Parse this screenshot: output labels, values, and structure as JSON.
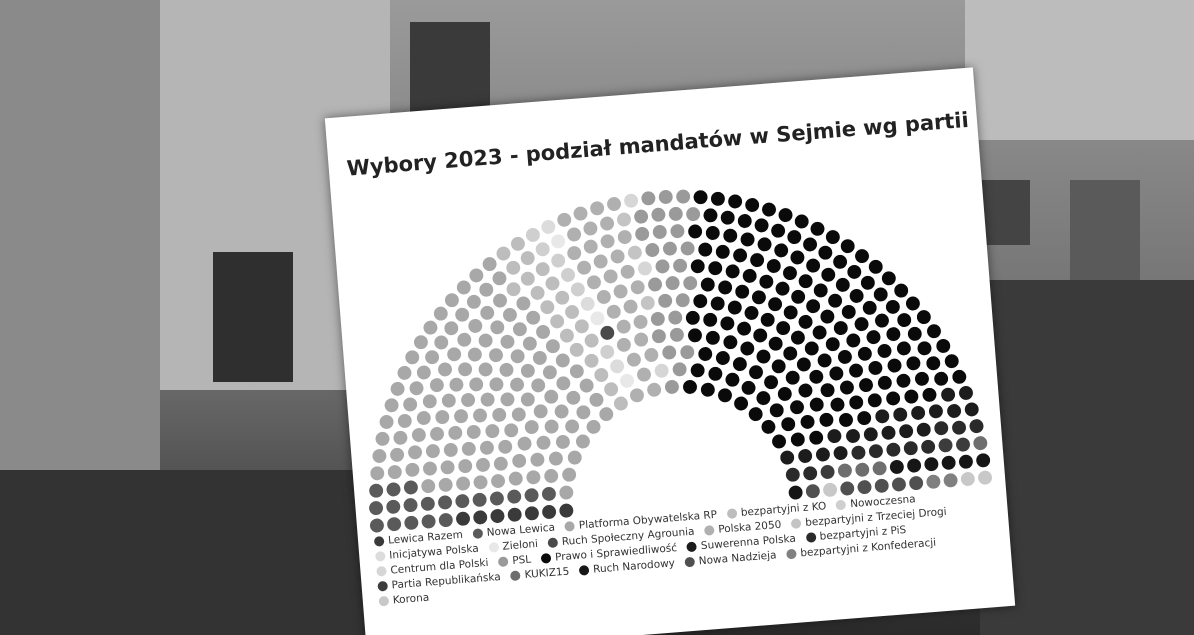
{
  "chart_data": {
    "type": "parliament",
    "title": "Wybory 2023 - podział mandatów w Sejmie wg partii",
    "series": [
      {
        "name": "Lewica Razem",
        "color": "#3a3a3a",
        "values": [
          7
        ]
      },
      {
        "name": "Nowa Lewica",
        "color": "#5a5a5a",
        "values": [
          19
        ]
      },
      {
        "name": "Platforma Obywatelska RP",
        "color": "#a8a8a8",
        "values": [
          123
        ]
      },
      {
        "name": "bezpartyjni z KO",
        "color": "#bdbdbd",
        "values": [
          21
        ]
      },
      {
        "name": "Nowoczesna",
        "color": "#cfcfcf",
        "values": [
          6
        ]
      },
      {
        "name": "Inicjatywa Polska",
        "color": "#dcdcdc",
        "values": [
          3
        ]
      },
      {
        "name": "Zieloni",
        "color": "#e8e8e8",
        "values": [
          3
        ]
      },
      {
        "name": "Ruch Społeczny Agrounia",
        "color": "#4a4a4a",
        "values": [
          1
        ]
      },
      {
        "name": "Polska 2050",
        "color": "#b0b0b0",
        "values": [
          31
        ]
      },
      {
        "name": "bezpartyjni z Trzeciej Drogi",
        "color": "#c4c4c4",
        "values": [
          3
        ]
      },
      {
        "name": "Centrum dla Polski",
        "color": "#d6d6d6",
        "values": [
          3
        ]
      },
      {
        "name": "PSL",
        "color": "#9a9a9a",
        "values": [
          28
        ]
      },
      {
        "name": "Prawo i Sprawiedliwość",
        "color": "#0a0a0a",
        "values": [
          159
        ]
      },
      {
        "name": "Suwerenna Polska",
        "color": "#1c1c1c",
        "values": [
          18
        ]
      },
      {
        "name": "bezpartyjni z PiS",
        "color": "#2a2a2a",
        "values": [
          10
        ]
      },
      {
        "name": "Partia Republikańska",
        "color": "#3c3c3c",
        "values": [
          3
        ]
      },
      {
        "name": "KUKIZ15",
        "color": "#6e6e6e",
        "values": [
          4
        ]
      },
      {
        "name": "Ruch Narodowy",
        "color": "#161616",
        "values": [
          7
        ]
      },
      {
        "name": "Nowa Nadzieja",
        "color": "#505050",
        "values": [
          6
        ]
      },
      {
        "name": "bezpartyjni z Konfederacji",
        "color": "#808080",
        "values": [
          2
        ]
      },
      {
        "name": "Korona",
        "color": "#c8c8c8",
        "values": [
          3
        ]
      }
    ]
  }
}
